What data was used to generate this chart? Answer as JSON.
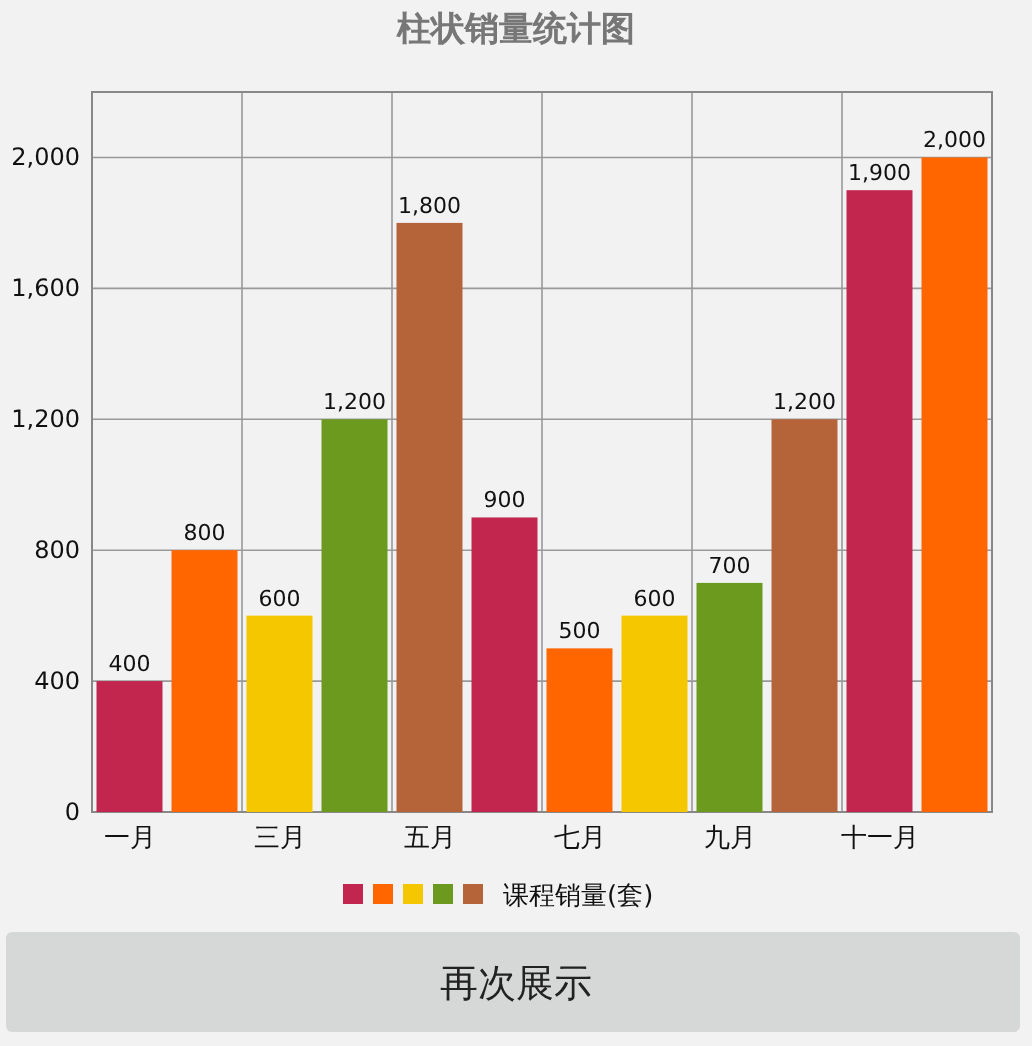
{
  "chart_data": {
    "type": "bar",
    "title": "柱状销量统计图",
    "categories": [
      "一月",
      null,
      "三月",
      null,
      "五月",
      null,
      "七月",
      null,
      "九月",
      null,
      "十一月",
      null
    ],
    "series": [
      {
        "name": "课程销量(套)",
        "colors": [
          "#c2264f",
          "#ff6600",
          "#f5c700",
          "#6b9a1f",
          "#b5643a",
          "#c2264f",
          "#ff6600",
          "#f5c700",
          "#6b9a1f",
          "#b5643a",
          "#c2264f",
          "#ff6600"
        ],
        "values": [
          400,
          800,
          600,
          1200,
          1800,
          900,
          500,
          600,
          700,
          1200,
          1900,
          2000
        ],
        "value_labels": [
          "400",
          "800",
          "600",
          "1,200",
          "1,800",
          "900",
          "500",
          "600",
          "700",
          "1,200",
          "1,900",
          "2,000"
        ]
      }
    ],
    "ylim": [
      0,
      2200
    ],
    "yticks": [
      0,
      400,
      800,
      {
        "value": 1200,
        "label": "1,200"
      },
      {
        "value": 1600,
        "label": "1,600"
      },
      {
        "value": 2000,
        "label": "2,000"
      }
    ],
    "grid": true,
    "legend": "bottom",
    "annotations": [
      "再次展示"
    ]
  }
}
